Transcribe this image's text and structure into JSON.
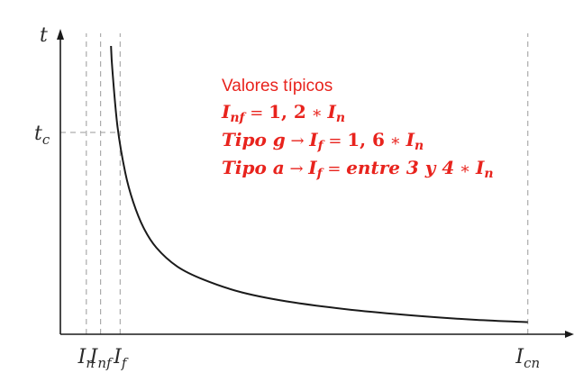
{
  "chart_data": {
    "type": "line",
    "title": "",
    "xlabel": "I",
    "ylabel": "t",
    "ylabel_sub": "",
    "series": [
      {
        "name": "",
        "x": [
          1.95,
          2.0,
          2.2,
          2.5,
          2.8,
          3.2,
          3.7,
          4.5,
          5.5,
          7.0,
          9.0,
          11.5,
          14.0,
          16.0,
          18.0
        ],
        "y": [
          10.0,
          9.2,
          7.2,
          5.6,
          4.6,
          3.7,
          3.0,
          2.35,
          1.9,
          1.45,
          1.1,
          0.82,
          0.62,
          0.5,
          0.42
        ]
      }
    ],
    "x_ticks": [
      {
        "main": "I",
        "sub": "n",
        "x": 1.0
      },
      {
        "main": "I",
        "sub": "nf",
        "x": 1.55
      },
      {
        "main": "I",
        "sub": "f",
        "x": 2.3
      },
      {
        "main": "I",
        "sub": "cn",
        "x": 18.0
      }
    ],
    "y_ticks": [
      {
        "main": "t",
        "sub": "c",
        "y": 7.0
      }
    ],
    "xlim": [
      0,
      19.5
    ],
    "ylim": [
      0,
      10.5
    ],
    "grid": false,
    "line_color": "#1a1a1a",
    "guide_color": "#9a9a9a"
  },
  "annotation": {
    "color": "#e8231d",
    "heading": "Valores típicos",
    "line1": {
      "a": "I",
      "a_sub": "nf",
      "eq": " = ",
      "val": "1, 2",
      "op": " ∗ ",
      "b": "I",
      "b_sub": "n"
    },
    "line2": {
      "a": "Tipo g",
      "arrow": " → ",
      "c": "I",
      "c_sub": "f",
      "eq": " = ",
      "val": "1, 6",
      "op": " ∗ ",
      "b": "I",
      "b_sub": "n"
    },
    "line3": {
      "a": "Tipo a",
      "arrow": " → ",
      "c": "I",
      "c_sub": "f",
      "eq": " = ",
      "val": "entre 3 y 4",
      "op": " ∗ ",
      "b": "I",
      "b_sub": "n"
    }
  }
}
